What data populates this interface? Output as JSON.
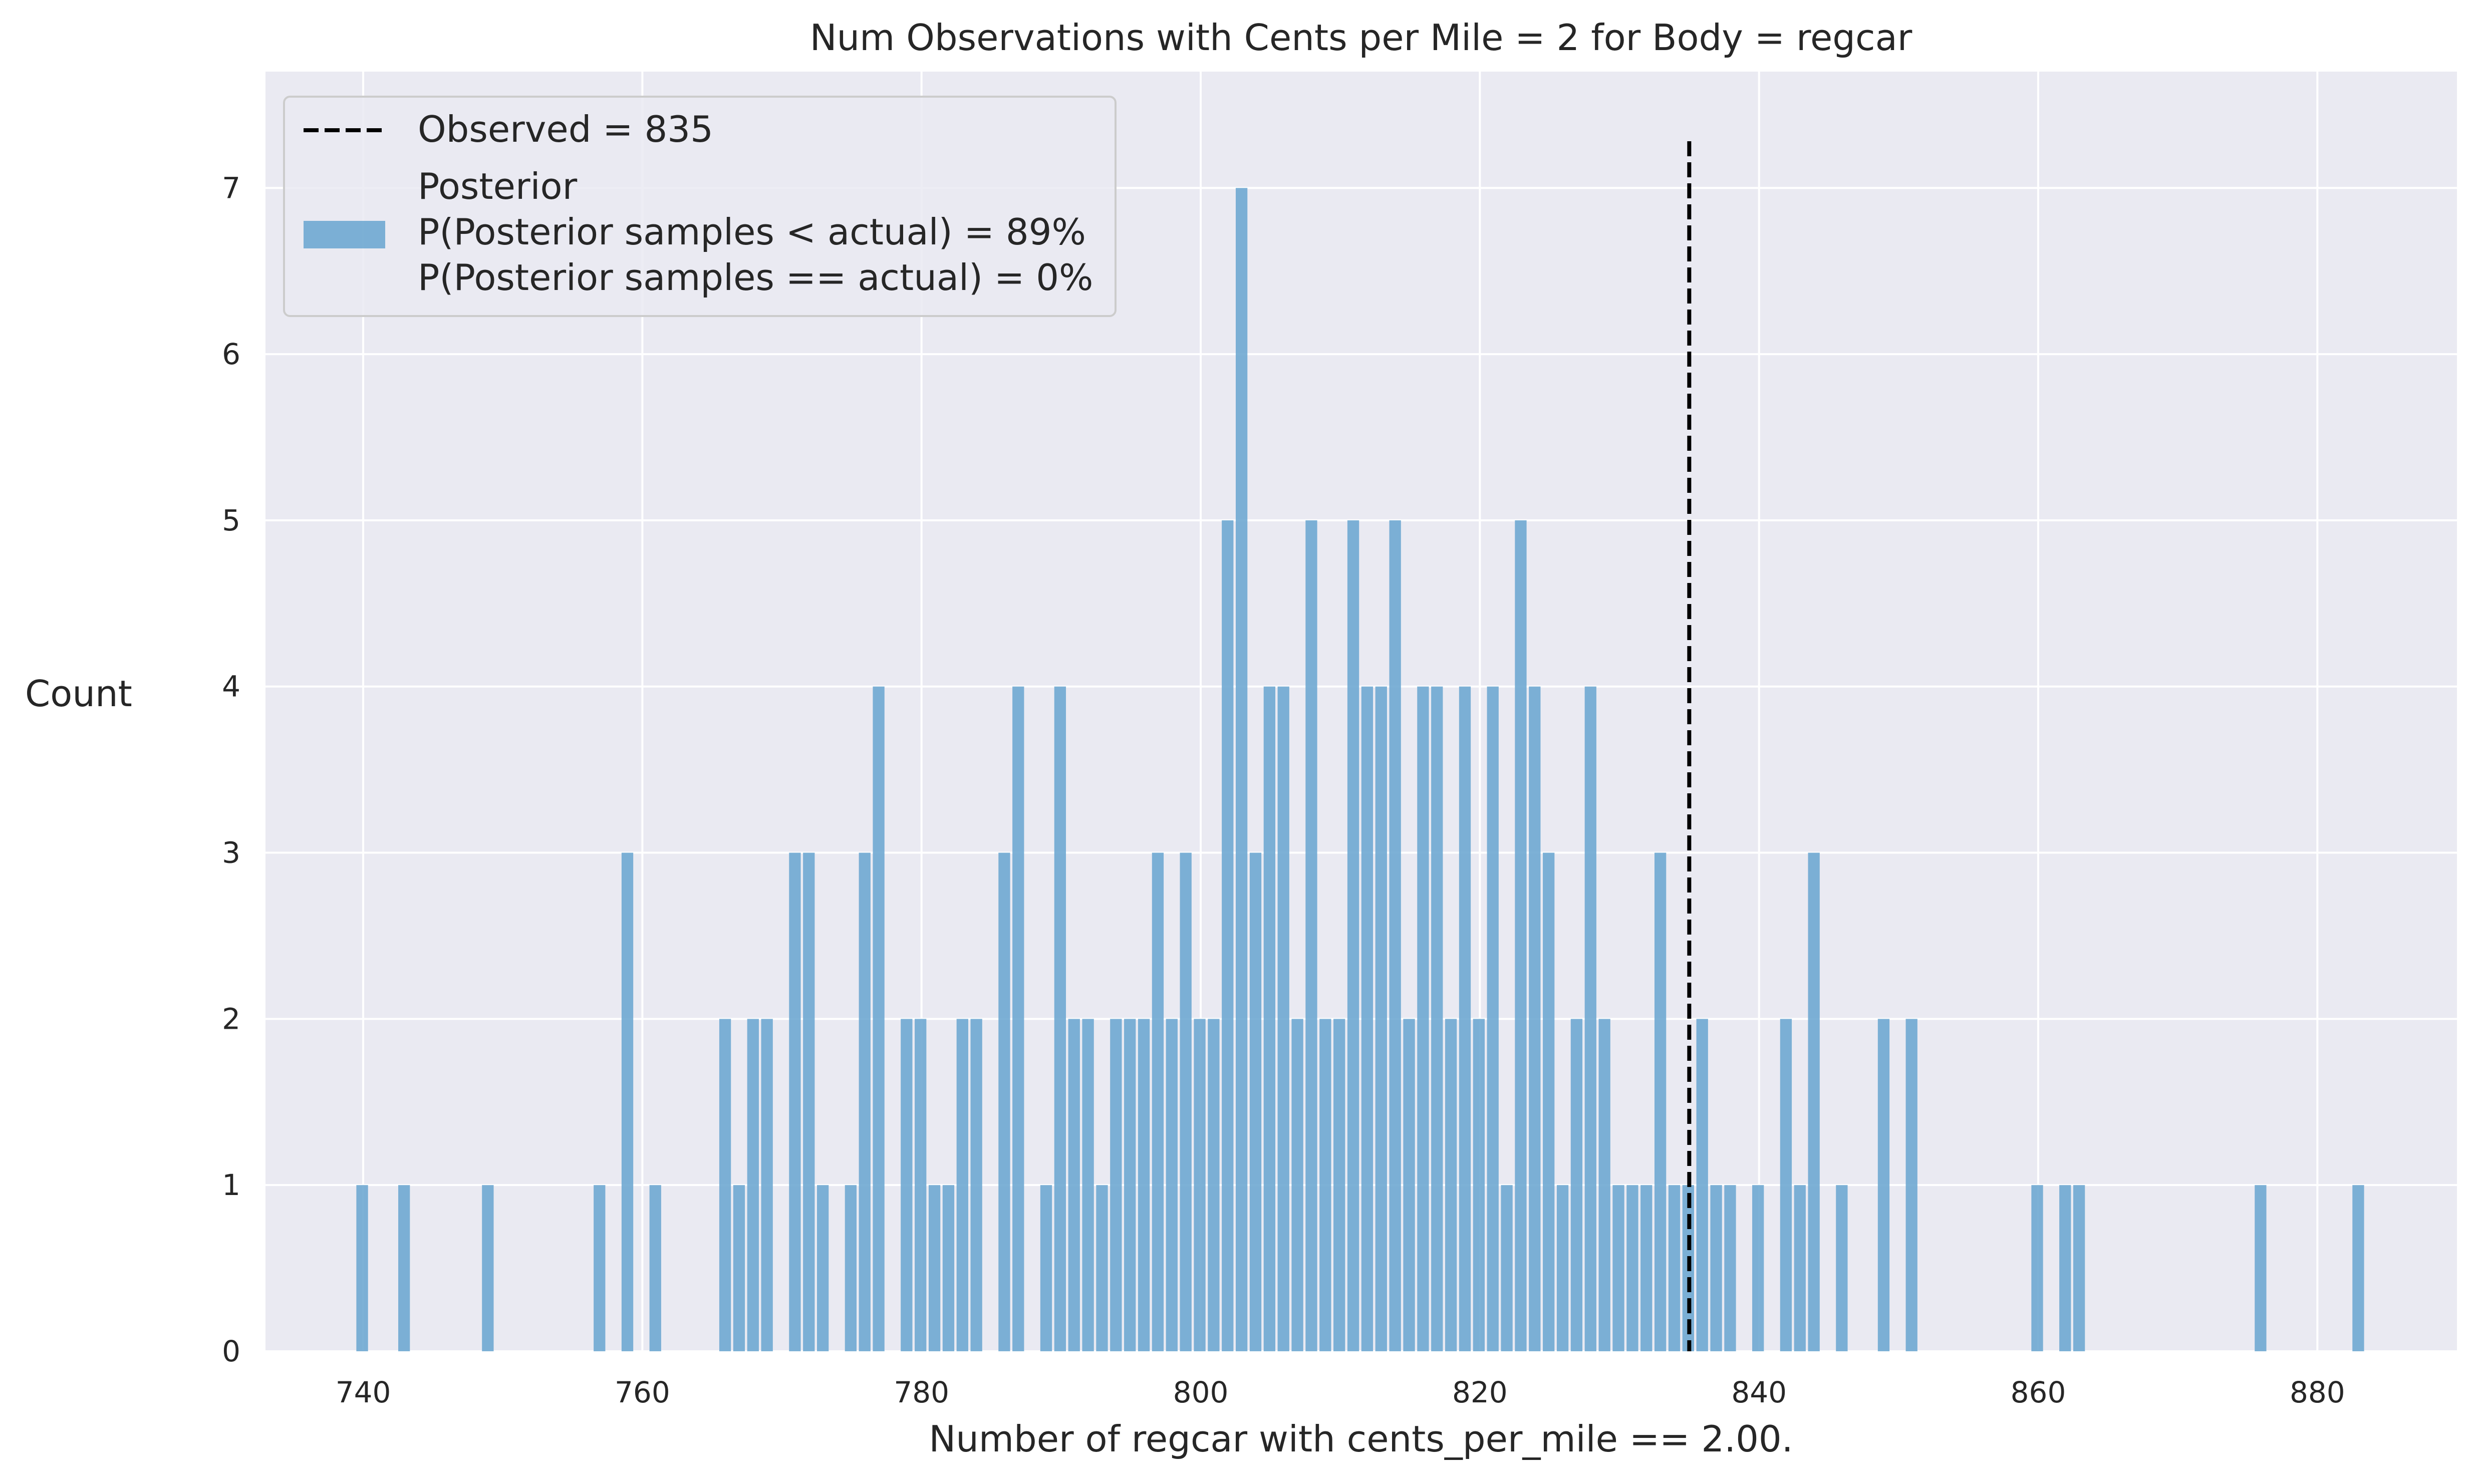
{
  "chart_data": {
    "type": "bar",
    "title": "Num Observations with Cents per Mile = 2 for Body = regcar",
    "xlabel": "Number of regcar with cents_per_mile == 2.00.",
    "ylabel": "Count",
    "xlim": [
      733.0,
      890.0
    ],
    "ylim": [
      0,
      7.7
    ],
    "xticks": [
      740,
      760,
      780,
      800,
      820,
      840,
      860,
      880
    ],
    "yticks": [
      0,
      1,
      2,
      3,
      4,
      5,
      6,
      7
    ],
    "grid": true,
    "legend_position": "top-left",
    "observed": {
      "x": 835,
      "label": "Observed = 835",
      "style": "dashed",
      "color": "#000000"
    },
    "series": [
      {
        "name": "Posterior",
        "legend_lines": [
          "Posterior",
          "P(Posterior samples < actual) = 89%",
          "P(Posterior samples == actual) = 0%"
        ],
        "color": "#6fa8d1",
        "bins": [
          {
            "x": 740,
            "count": 1
          },
          {
            "x": 743,
            "count": 1
          },
          {
            "x": 749,
            "count": 1
          },
          {
            "x": 757,
            "count": 1
          },
          {
            "x": 759,
            "count": 3
          },
          {
            "x": 761,
            "count": 1
          },
          {
            "x": 766,
            "count": 2
          },
          {
            "x": 767,
            "count": 1
          },
          {
            "x": 768,
            "count": 2
          },
          {
            "x": 769,
            "count": 2
          },
          {
            "x": 771,
            "count": 3
          },
          {
            "x": 772,
            "count": 3
          },
          {
            "x": 773,
            "count": 1
          },
          {
            "x": 775,
            "count": 1
          },
          {
            "x": 776,
            "count": 3
          },
          {
            "x": 777,
            "count": 4
          },
          {
            "x": 779,
            "count": 2
          },
          {
            "x": 780,
            "count": 2
          },
          {
            "x": 781,
            "count": 1
          },
          {
            "x": 782,
            "count": 1
          },
          {
            "x": 783,
            "count": 2
          },
          {
            "x": 784,
            "count": 2
          },
          {
            "x": 786,
            "count": 3
          },
          {
            "x": 787,
            "count": 4
          },
          {
            "x": 789,
            "count": 1
          },
          {
            "x": 790,
            "count": 4
          },
          {
            "x": 791,
            "count": 2
          },
          {
            "x": 792,
            "count": 2
          },
          {
            "x": 793,
            "count": 1
          },
          {
            "x": 794,
            "count": 2
          },
          {
            "x": 795,
            "count": 2
          },
          {
            "x": 796,
            "count": 2
          },
          {
            "x": 797,
            "count": 3
          },
          {
            "x": 798,
            "count": 2
          },
          {
            "x": 799,
            "count": 3
          },
          {
            "x": 800,
            "count": 2
          },
          {
            "x": 801,
            "count": 2
          },
          {
            "x": 802,
            "count": 5
          },
          {
            "x": 803,
            "count": 7
          },
          {
            "x": 804,
            "count": 3
          },
          {
            "x": 805,
            "count": 4
          },
          {
            "x": 806,
            "count": 4
          },
          {
            "x": 807,
            "count": 2
          },
          {
            "x": 808,
            "count": 5
          },
          {
            "x": 809,
            "count": 2
          },
          {
            "x": 810,
            "count": 2
          },
          {
            "x": 811,
            "count": 5
          },
          {
            "x": 812,
            "count": 4
          },
          {
            "x": 813,
            "count": 4
          },
          {
            "x": 814,
            "count": 5
          },
          {
            "x": 815,
            "count": 2
          },
          {
            "x": 816,
            "count": 4
          },
          {
            "x": 817,
            "count": 4
          },
          {
            "x": 818,
            "count": 2
          },
          {
            "x": 819,
            "count": 4
          },
          {
            "x": 820,
            "count": 2
          },
          {
            "x": 821,
            "count": 4
          },
          {
            "x": 822,
            "count": 1
          },
          {
            "x": 823,
            "count": 5
          },
          {
            "x": 824,
            "count": 4
          },
          {
            "x": 825,
            "count": 3
          },
          {
            "x": 826,
            "count": 1
          },
          {
            "x": 827,
            "count": 2
          },
          {
            "x": 828,
            "count": 4
          },
          {
            "x": 829,
            "count": 2
          },
          {
            "x": 830,
            "count": 1
          },
          {
            "x": 831,
            "count": 1
          },
          {
            "x": 832,
            "count": 1
          },
          {
            "x": 833,
            "count": 3
          },
          {
            "x": 834,
            "count": 1
          },
          {
            "x": 835,
            "count": 1
          },
          {
            "x": 836,
            "count": 2
          },
          {
            "x": 837,
            "count": 1
          },
          {
            "x": 838,
            "count": 1
          },
          {
            "x": 840,
            "count": 1
          },
          {
            "x": 842,
            "count": 2
          },
          {
            "x": 843,
            "count": 1
          },
          {
            "x": 844,
            "count": 3
          },
          {
            "x": 846,
            "count": 1
          },
          {
            "x": 849,
            "count": 2
          },
          {
            "x": 851,
            "count": 2
          },
          {
            "x": 860,
            "count": 1
          },
          {
            "x": 862,
            "count": 1
          },
          {
            "x": 863,
            "count": 1
          },
          {
            "x": 876,
            "count": 1
          },
          {
            "x": 883,
            "count": 1
          }
        ]
      }
    ]
  }
}
